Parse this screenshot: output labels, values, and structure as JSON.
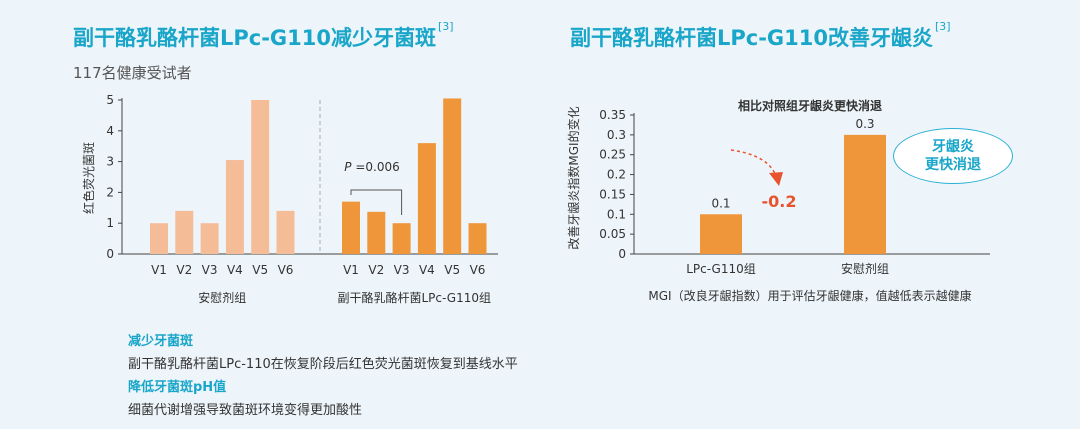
{
  "left": {
    "title": "副干酪乳酪杆菌LPc-G110减少牙菌斑",
    "ref": "[3]",
    "subtitle": "117名健康受试者"
  },
  "right": {
    "title": "副干酪乳酪杆菌LPc-G110改善牙龈炎",
    "ref": "[3]",
    "badge_line1": "牙龈炎",
    "badge_line2": "更快消退"
  },
  "notes": [
    {
      "title": "减少牙菌斑",
      "text": "副干酪乳酪杆菌LPc-110在恢复阶段后红色荧光菌斑恢复到基线水平"
    },
    {
      "title": "降低牙菌斑pH值",
      "text": "细菌代谢增强导致菌斑环境变得更加酸性"
    }
  ],
  "colors": {
    "placebo": "#f5bc98",
    "probiotic": "#f0963a",
    "accent": "#1aa6c9",
    "diff": "#e8532f"
  },
  "chart_data": [
    {
      "type": "bar",
      "ylabel": "红色荧光菌斑",
      "ylim": [
        0,
        5
      ],
      "yticks": [
        "0",
        "1",
        "2",
        "3",
        "4",
        "5"
      ],
      "groups": [
        {
          "name": "安慰剂组",
          "categories": [
            "V1",
            "V2",
            "V3",
            "V4",
            "V5",
            "V6"
          ],
          "values": [
            1.0,
            1.4,
            1.0,
            3.05,
            5.0,
            1.4
          ]
        },
        {
          "name": "副干酪乳酪杆菌LPc-G110组",
          "categories": [
            "V1",
            "V2",
            "V3",
            "V4",
            "V5",
            "V6"
          ],
          "values": [
            1.7,
            1.37,
            1.0,
            3.6,
            5.05,
            1.0
          ]
        }
      ],
      "annotation": {
        "p_label": "P",
        "p_value": "=0.006"
      }
    },
    {
      "type": "bar",
      "title": "相比对照组牙龈炎更快消退",
      "ylabel": "改善牙龈炎指数MGI的变化",
      "xlabel": "MGI（改良牙龈指数）用于评估牙龈健康，值越低表示越健康",
      "ylim": [
        0,
        0.35
      ],
      "yticks": [
        "0",
        "0.05",
        "0.1",
        "0.15",
        "0.2",
        "0.25",
        "0.3",
        "0.35"
      ],
      "categories": [
        "LPc-G110组",
        "安慰剂组"
      ],
      "values": [
        0.1,
        0.3
      ],
      "value_labels": [
        "0.1",
        "0.3"
      ],
      "diff_label": "-0.2"
    }
  ]
}
